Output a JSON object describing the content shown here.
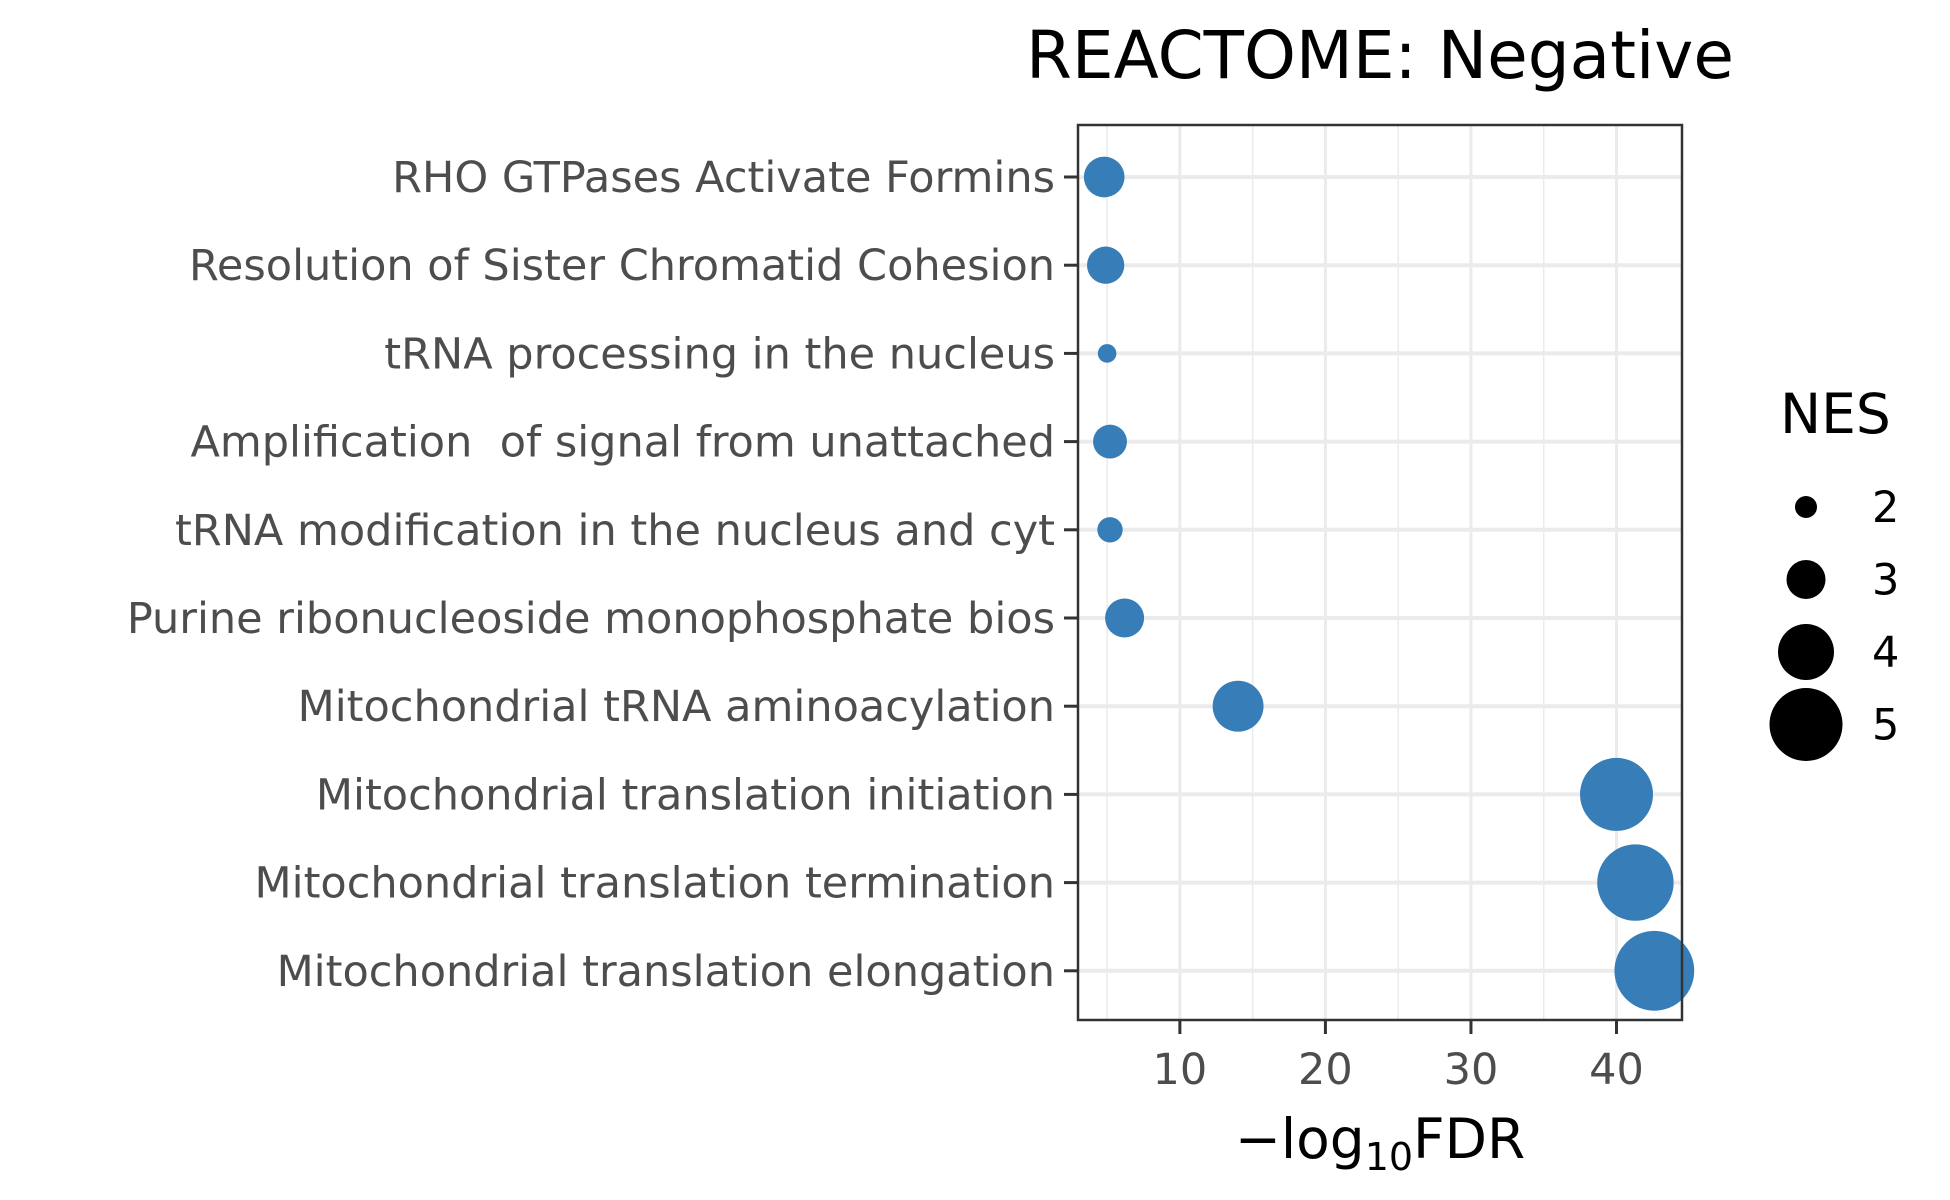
{
  "chart_data": {
    "type": "scatter",
    "title": "REACTOME: Negative",
    "xlabel": {
      "prefix": "−log",
      "subscript": "10",
      "suffix": "FDR"
    },
    "ylabel": "",
    "xlim": [
      3,
      44.5
    ],
    "xticks": [
      10,
      20,
      30,
      40
    ],
    "grid": true,
    "categories": [
      "RHO GTPases Activate Formins",
      "Resolution of Sister Chromatid Cohesion",
      "tRNA processing in the nucleus",
      "Amplification  of signal from unattached",
      "tRNA modification in the nucleus and cyt",
      "Purine ribonucleoside monophosphate bios",
      "Mitochondrial tRNA aminoacylation",
      "Mitochondrial translation initiation",
      "Mitochondrial translation termination",
      "Mitochondrial translation elongation"
    ],
    "series": [
      {
        "color": "#377eb8",
        "points": [
          {
            "category": "RHO GTPases Activate Formins",
            "x": 4.8,
            "nes": 3.1
          },
          {
            "category": "Resolution of Sister Chromatid Cohesion",
            "x": 4.9,
            "nes": 2.9
          },
          {
            "category": "tRNA processing in the nucleus",
            "x": 5.0,
            "nes": 1.8
          },
          {
            "category": "Amplification  of signal from unattached",
            "x": 5.2,
            "nes": 2.7
          },
          {
            "category": "tRNA modification in the nucleus and cyt",
            "x": 5.2,
            "nes": 2.2
          },
          {
            "category": "Purine ribonucleoside monophosphate bios",
            "x": 6.2,
            "nes": 3.0
          },
          {
            "category": "Mitochondrial tRNA aminoacylation",
            "x": 14.0,
            "nes": 3.7
          },
          {
            "category": "Mitochondrial translation initiation",
            "x": 40.0,
            "nes": 5.0
          },
          {
            "category": "Mitochondrial translation termination",
            "x": 41.3,
            "nes": 5.2
          },
          {
            "category": "Mitochondrial translation elongation",
            "x": 42.6,
            "nes": 5.4
          }
        ]
      }
    ],
    "legend": {
      "title": "NES",
      "position": "right",
      "entries": [
        {
          "label": "2",
          "nes": 2
        },
        {
          "label": "3",
          "nes": 3
        },
        {
          "label": "4",
          "nes": 4
        },
        {
          "label": "5",
          "nes": 5
        }
      ]
    }
  }
}
